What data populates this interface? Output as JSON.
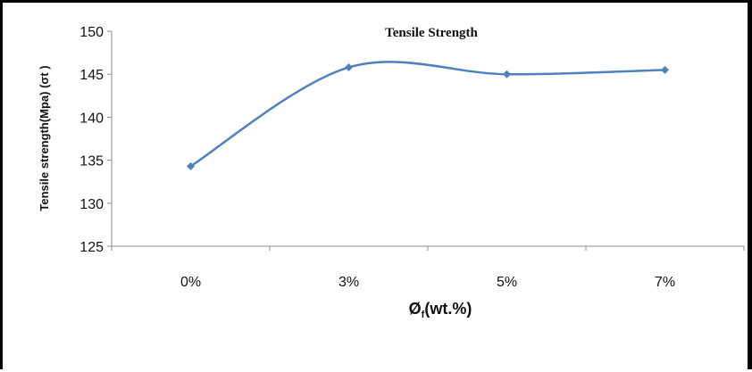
{
  "chart_data": {
    "type": "line",
    "title": "Tensile Strength",
    "xlabel": "Øf(wt.%)",
    "xlabel_main": "Ø",
    "xlabel_sub": "f",
    "xlabel_tail": "(wt.%)",
    "ylabel": "Tensile strength(Mpa) (σt )",
    "categories": [
      "0%",
      "3%",
      "5%",
      "7%"
    ],
    "series": [
      {
        "values": [
          134.3,
          145.8,
          145.0,
          145.5
        ],
        "color": "#4f81bd",
        "smooth": true,
        "marker": "diamond"
      }
    ],
    "ylim": [
      125,
      150
    ],
    "yticks": [
      125,
      130,
      135,
      140,
      145,
      150
    ],
    "grid": false,
    "legend": "none"
  }
}
